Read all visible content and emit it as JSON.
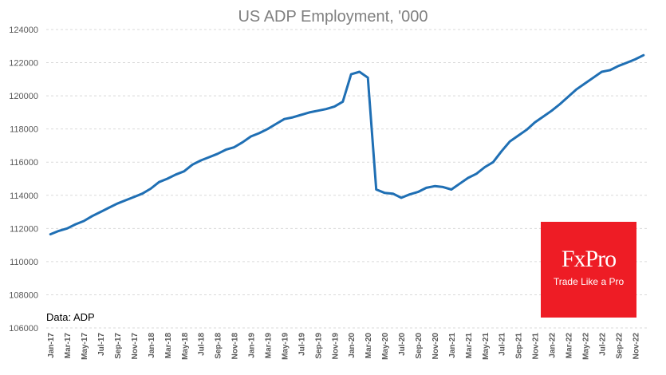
{
  "chart_data": {
    "type": "line",
    "title": "US ADP Employment, '000",
    "xlabel": "",
    "ylabel": "",
    "ylim": [
      106000,
      124000
    ],
    "yticks": [
      "106000",
      "108000",
      "110000",
      "112000",
      "114000",
      "116000",
      "118000",
      "120000",
      "122000",
      "124000"
    ],
    "x": [
      "Jan-17",
      "Feb-17",
      "Mar-17",
      "Apr-17",
      "May-17",
      "Jun-17",
      "Jul-17",
      "Aug-17",
      "Sep-17",
      "Oct-17",
      "Nov-17",
      "Dec-17",
      "Jan-18",
      "Feb-18",
      "Mar-18",
      "Apr-18",
      "May-18",
      "Jun-18",
      "Jul-18",
      "Aug-18",
      "Sep-18",
      "Oct-18",
      "Nov-18",
      "Dec-18",
      "Jan-19",
      "Feb-19",
      "Mar-19",
      "Apr-19",
      "May-19",
      "Jun-19",
      "Jul-19",
      "Aug-19",
      "Sep-19",
      "Oct-19",
      "Nov-19",
      "Dec-19",
      "Jan-20",
      "Feb-20",
      "Mar-20",
      "Apr-20",
      "May-20",
      "Jun-20",
      "Jul-20",
      "Aug-20",
      "Sep-20",
      "Oct-20",
      "Nov-20",
      "Dec-20",
      "Jan-21",
      "Feb-21",
      "Mar-21",
      "Apr-21",
      "May-21",
      "Jun-21",
      "Jul-21",
      "Aug-21",
      "Sep-21",
      "Oct-21",
      "Nov-21",
      "Dec-21",
      "Jan-22",
      "Feb-22",
      "Mar-22",
      "Apr-22",
      "May-22",
      "Jun-22",
      "Jul-22",
      "Aug-22",
      "Sep-22",
      "Oct-22",
      "Nov-22",
      "Dec-22"
    ],
    "xtick_labels": [
      "Jan-17",
      "Mar-17",
      "May-17",
      "Jul-17",
      "Sep-17",
      "Nov-17",
      "Jan-18",
      "Mar-18",
      "May-18",
      "Jul-18",
      "Sep-18",
      "Nov-18",
      "Jan-19",
      "Mar-19",
      "May-19",
      "Jul-19",
      "Sep-19",
      "Nov-19",
      "Jan-20",
      "Mar-20",
      "May-20",
      "Jul-20",
      "Sep-20",
      "Nov-20",
      "Jan-21",
      "Mar-21",
      "May-21",
      "Jul-21",
      "Sep-21",
      "Nov-21",
      "Jan-22",
      "Mar-22",
      "May-22",
      "Jul-22",
      "Sep-22",
      "Nov-22"
    ],
    "series": [
      {
        "color": "#1f6fb4",
        "values": [
          111650,
          111850,
          112000,
          112250,
          112450,
          112750,
          113000,
          113250,
          113500,
          113700,
          113900,
          114100,
          114400,
          114800,
          115000,
          115250,
          115450,
          115850,
          116100,
          116300,
          116500,
          116750,
          116900,
          117200,
          117550,
          117750,
          118000,
          118300,
          118600,
          118700,
          118850,
          119000,
          119100,
          119200,
          119350,
          119650,
          121300,
          121450,
          121100,
          114350,
          114150,
          114100,
          113850,
          114050,
          114200,
          114450,
          114550,
          114500,
          114350,
          114700,
          115050,
          115300,
          115700,
          116000,
          116650,
          117250,
          117600,
          117950,
          118400,
          118750,
          119100,
          119500,
          119950,
          120400,
          120750,
          121100,
          121450,
          121550,
          121800,
          122000,
          122200,
          122450
        ]
      }
    ],
    "grid": true,
    "source_note": "Data: ADP"
  },
  "logo": {
    "name": "FxPro",
    "tagline": "Trade Like a Pro",
    "color": "#ee1c25"
  }
}
